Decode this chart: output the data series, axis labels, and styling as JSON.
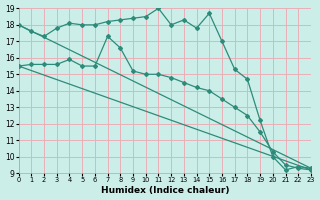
{
  "xlabel": "Humidex (Indice chaleur)",
  "xlim": [
    0,
    23
  ],
  "ylim": [
    9,
    19
  ],
  "xticks": [
    0,
    1,
    2,
    3,
    4,
    5,
    6,
    7,
    8,
    9,
    10,
    11,
    12,
    13,
    14,
    15,
    16,
    17,
    18,
    19,
    20,
    21,
    22,
    23
  ],
  "yticks": [
    9,
    10,
    11,
    12,
    13,
    14,
    15,
    16,
    17,
    18,
    19
  ],
  "line_color": "#2e8b7a",
  "bg_color": "#cceee9",
  "grid_color": "#e8b0b8",
  "line1_x": [
    0,
    1,
    2,
    3,
    4,
    5,
    6,
    7,
    8,
    9,
    10,
    11,
    12,
    13,
    14,
    15,
    16,
    17,
    18,
    19,
    20,
    21,
    22,
    23
  ],
  "line1_y": [
    18.0,
    17.6,
    17.3,
    17.8,
    18.1,
    18.0,
    18.0,
    18.2,
    18.3,
    18.4,
    18.5,
    19.0,
    18.0,
    18.3,
    17.8,
    18.7,
    17.0,
    15.3,
    14.7,
    12.2,
    10.0,
    9.2,
    9.4,
    9.3
  ],
  "line2_x": [
    0,
    1,
    2,
    3,
    4,
    5,
    6,
    7,
    8,
    9,
    10,
    11,
    12,
    13,
    14,
    15,
    16,
    17,
    18,
    19,
    20,
    21,
    22,
    23
  ],
  "line2_y": [
    15.5,
    15.6,
    15.6,
    15.6,
    15.9,
    15.5,
    15.5,
    17.3,
    16.6,
    15.2,
    15.0,
    15.0,
    14.8,
    14.5,
    14.2,
    14.0,
    13.5,
    13.0,
    12.5,
    11.5,
    10.3,
    9.5,
    9.3,
    9.2
  ],
  "line3_x": [
    0,
    23
  ],
  "line3_y": [
    18.0,
    9.3
  ],
  "line4_x": [
    0,
    23
  ],
  "line4_y": [
    15.5,
    9.2
  ]
}
